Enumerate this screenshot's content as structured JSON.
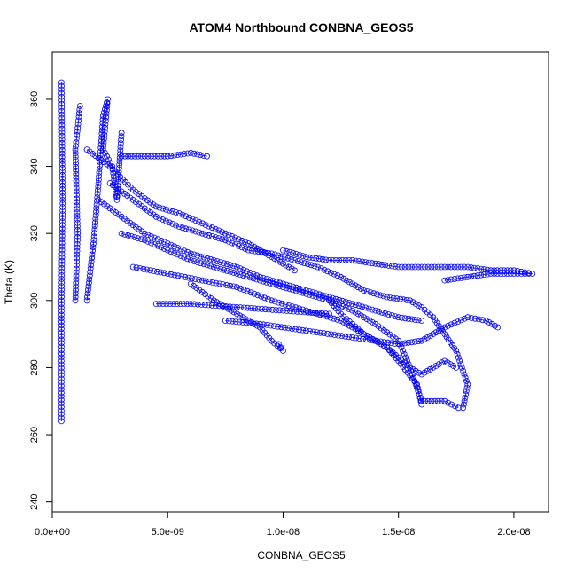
{
  "chart_data": {
    "type": "scatter",
    "title": "ATOM4 Northbound CONBNA_GEOS5",
    "xlabel": "CONBNA_GEOS5",
    "ylabel": "Theta (K)",
    "xlim": [
      0,
      2.15e-08
    ],
    "ylim": [
      237,
      374
    ],
    "x_ticks": [
      0,
      5e-09,
      1e-08,
      1.5e-08,
      2e-08
    ],
    "x_tick_labels": [
      "0.0e+00",
      "5.0e-09",
      "1.0e-08",
      "1.5e-08",
      "2.0e-08"
    ],
    "y_ticks": [
      240,
      260,
      280,
      300,
      320,
      340,
      360
    ],
    "y_tick_labels": [
      "240",
      "260",
      "280",
      "300",
      "320",
      "340",
      "360"
    ],
    "grid": false,
    "legend": "none",
    "marker": "open-circle",
    "color": "#0000FF",
    "segments": [
      {
        "points": [
          [
            4e-10,
            264
          ],
          [
            4e-10,
            300
          ],
          [
            4.5e-10,
            330
          ],
          [
            4e-10,
            365
          ]
        ]
      },
      {
        "points": [
          [
            1e-09,
            300
          ],
          [
            1.1e-09,
            320
          ],
          [
            1e-09,
            345
          ],
          [
            1.2e-09,
            358
          ]
        ]
      },
      {
        "points": [
          [
            1.5e-09,
            300
          ],
          [
            1.8e-09,
            318
          ],
          [
            2e-09,
            335
          ],
          [
            2.2e-09,
            355
          ],
          [
            2.4e-09,
            360
          ],
          [
            2.2e-09,
            345
          ],
          [
            2.6e-09,
            340
          ],
          [
            2.8e-09,
            330
          ],
          [
            3e-09,
            350
          ]
        ]
      },
      {
        "points": [
          [
            3e-09,
            343
          ],
          [
            4e-09,
            343
          ],
          [
            5e-09,
            343
          ],
          [
            6e-09,
            344
          ],
          [
            6.7e-09,
            343
          ]
        ]
      },
      {
        "points": [
          [
            2.5e-09,
            335
          ],
          [
            3.5e-09,
            330
          ],
          [
            4.5e-09,
            325
          ],
          [
            5.5e-09,
            322
          ],
          [
            6.5e-09,
            320
          ],
          [
            7.5e-09,
            318
          ],
          [
            8.5e-09,
            315
          ],
          [
            9.5e-09,
            314
          ],
          [
            1.05e-08,
            312
          ],
          [
            1.15e-08,
            310
          ],
          [
            1.25e-08,
            307
          ],
          [
            1.35e-08,
            303
          ],
          [
            1.45e-08,
            301
          ],
          [
            1.55e-08,
            300
          ],
          [
            1.6e-08,
            298
          ],
          [
            1.65e-08,
            295
          ],
          [
            1.7e-08,
            290
          ],
          [
            1.75e-08,
            285
          ],
          [
            1.8e-08,
            275
          ],
          [
            1.78e-08,
            268
          ]
        ]
      },
      {
        "points": [
          [
            3e-09,
            320
          ],
          [
            4e-09,
            318
          ],
          [
            5e-09,
            315
          ],
          [
            6e-09,
            312
          ],
          [
            7e-09,
            310
          ],
          [
            8e-09,
            308
          ],
          [
            9e-09,
            306
          ],
          [
            1e-08,
            304
          ],
          [
            1.1e-08,
            302
          ],
          [
            1.2e-08,
            300
          ],
          [
            1.3e-08,
            297
          ],
          [
            1.4e-08,
            293
          ],
          [
            1.5e-08,
            288
          ],
          [
            1.55e-08,
            280
          ],
          [
            1.6e-08,
            270
          ],
          [
            1.7e-08,
            270
          ],
          [
            1.76e-08,
            268
          ]
        ]
      },
      {
        "points": [
          [
            3.5e-09,
            310
          ],
          [
            5e-09,
            308
          ],
          [
            6.5e-09,
            306
          ],
          [
            8e-09,
            304
          ],
          [
            9.5e-09,
            300
          ],
          [
            1.1e-08,
            297
          ],
          [
            1.25e-08,
            294
          ],
          [
            1.35e-08,
            290
          ],
          [
            1.45e-08,
            286
          ],
          [
            1.5e-08,
            282
          ],
          [
            1.58e-08,
            275
          ],
          [
            1.6e-08,
            269
          ]
        ]
      },
      {
        "points": [
          [
            6e-09,
            305
          ],
          [
            7e-09,
            300
          ],
          [
            8e-09,
            296
          ],
          [
            9e-09,
            292
          ],
          [
            9.5e-09,
            288
          ],
          [
            1e-08,
            285
          ],
          [
            9.8e-09,
            287
          ]
        ]
      },
      {
        "points": [
          [
            4.5e-09,
            299
          ],
          [
            6e-09,
            299
          ],
          [
            8e-09,
            298
          ],
          [
            1e-08,
            297
          ],
          [
            1.2e-08,
            296
          ]
        ]
      },
      {
        "points": [
          [
            7.5e-09,
            294
          ],
          [
            9e-09,
            293
          ],
          [
            1.1e-08,
            291
          ],
          [
            1.3e-08,
            289
          ],
          [
            1.5e-08,
            287
          ],
          [
            1.6e-08,
            288
          ],
          [
            1.7e-08,
            292
          ],
          [
            1.8e-08,
            295
          ],
          [
            1.88e-08,
            294
          ],
          [
            1.93e-08,
            292
          ]
        ]
      },
      {
        "points": [
          [
            1e-08,
            315
          ],
          [
            1.1e-08,
            313
          ],
          [
            1.2e-08,
            312
          ],
          [
            1.3e-08,
            312
          ],
          [
            1.4e-08,
            311
          ],
          [
            1.5e-08,
            310
          ],
          [
            1.6e-08,
            310
          ],
          [
            1.7e-08,
            310
          ],
          [
            1.8e-08,
            310
          ],
          [
            1.9e-08,
            309
          ],
          [
            2e-08,
            309
          ],
          [
            2.08e-08,
            308
          ],
          [
            2e-08,
            308
          ],
          [
            1.9e-08,
            308
          ],
          [
            1.8e-08,
            307
          ],
          [
            1.7e-08,
            306
          ]
        ]
      },
      {
        "points": [
          [
            1.2e-08,
            300
          ],
          [
            1.25e-08,
            296
          ],
          [
            1.3e-08,
            293
          ],
          [
            1.35e-08,
            290
          ],
          [
            1.4e-08,
            288
          ],
          [
            1.45e-08,
            286
          ],
          [
            1.5e-08,
            283
          ],
          [
            1.55e-08,
            280
          ],
          [
            1.6e-08,
            278
          ],
          [
            1.65e-08,
            280
          ],
          [
            1.7e-08,
            282
          ],
          [
            1.75e-08,
            280
          ]
        ]
      },
      {
        "points": [
          [
            2e-09,
            330
          ],
          [
            3e-09,
            325
          ],
          [
            4e-09,
            320
          ],
          [
            5e-09,
            317
          ],
          [
            6e-09,
            314
          ],
          [
            7e-09,
            312
          ],
          [
            8e-09,
            310
          ],
          [
            9e-09,
            307
          ],
          [
            1e-08,
            305
          ],
          [
            1.1e-08,
            303
          ],
          [
            1.2e-08,
            301
          ],
          [
            1.3e-08,
            299
          ],
          [
            1.4e-08,
            297
          ],
          [
            1.5e-08,
            295
          ],
          [
            1.6e-08,
            294
          ]
        ]
      },
      {
        "points": [
          [
            1.5e-09,
            345
          ],
          [
            2.5e-09,
            340
          ],
          [
            3.5e-09,
            333
          ],
          [
            4.5e-09,
            328
          ],
          [
            5.5e-09,
            326
          ],
          [
            6.5e-09,
            323
          ],
          [
            7.5e-09,
            320
          ],
          [
            8.5e-09,
            317
          ],
          [
            9.5e-09,
            313
          ],
          [
            1.05e-08,
            309
          ]
        ]
      }
    ]
  }
}
